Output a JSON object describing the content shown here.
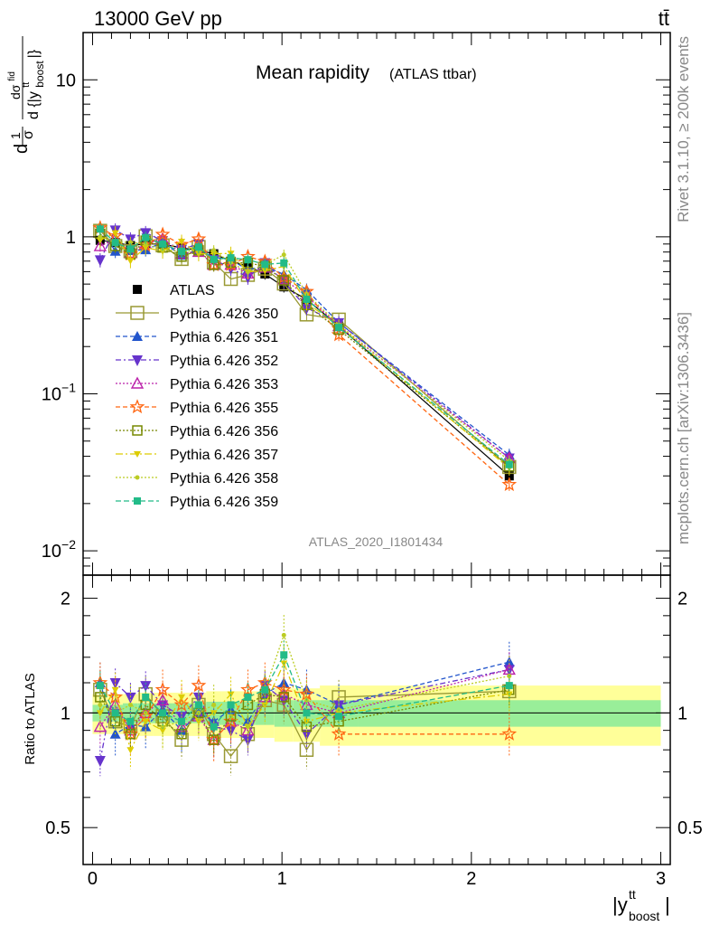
{
  "header": {
    "energy": "13000 GeV pp",
    "process": "tt̄",
    "rivet": "Rivet 3.1.10, ≥ 200k events",
    "mcplots": "mcplots.cern.ch [arXiv:1306.3436]",
    "analysis": "ATLAS_2020_I1801434"
  },
  "chart_data": {
    "type": "scatter",
    "title": "Mean rapidity",
    "subtitle": "(ATLAS ttbar)",
    "ylabel_main": "1/σ dσ^fid / d{|y_boost^tt|}",
    "ylabel_ratio": "Ratio to ATLAS",
    "xlabel": "|y_boost^tt|",
    "xlim": [
      -0.05,
      3.05
    ],
    "ylim_main": [
      0.007,
      20
    ],
    "ylim_ratio": [
      0.4,
      2.3
    ],
    "x_ticks": [
      "0",
      "1",
      "2",
      "3"
    ],
    "y_ticks_main": [
      "10",
      "1",
      "10−1",
      "10−2"
    ],
    "y_ticks_ratio": [
      "2",
      "1",
      "0.5"
    ],
    "bins": [
      [
        0.0,
        0.08
      ],
      [
        0.08,
        0.16
      ],
      [
        0.16,
        0.24
      ],
      [
        0.24,
        0.32
      ],
      [
        0.32,
        0.42
      ],
      [
        0.42,
        0.52
      ],
      [
        0.52,
        0.6
      ],
      [
        0.6,
        0.68
      ],
      [
        0.68,
        0.78
      ],
      [
        0.78,
        0.86
      ],
      [
        0.86,
        0.96
      ],
      [
        0.96,
        1.06
      ],
      [
        1.06,
        1.2
      ],
      [
        1.2,
        1.4
      ],
      [
        1.4,
        3.0
      ]
    ],
    "x": [
      0.04,
      0.12,
      0.2,
      0.28,
      0.37,
      0.47,
      0.56,
      0.64,
      0.73,
      0.82,
      0.91,
      1.01,
      1.13,
      1.3,
      2.2
    ],
    "atlas": [
      0.95,
      0.92,
      0.88,
      0.9,
      0.9,
      0.85,
      0.82,
      0.78,
      0.7,
      0.65,
      0.58,
      0.48,
      0.4,
      0.27,
      0.03
    ],
    "band_inner": [
      0.05,
      0.05,
      0.06,
      0.06,
      0.06,
      0.06,
      0.06,
      0.07,
      0.07,
      0.07,
      0.07,
      0.08,
      0.08,
      0.08,
      0.08
    ],
    "band_outer": [
      0.12,
      0.12,
      0.12,
      0.13,
      0.13,
      0.13,
      0.13,
      0.14,
      0.14,
      0.14,
      0.14,
      0.16,
      0.16,
      0.18,
      0.18
    ],
    "series": [
      {
        "name": "ATLAS",
        "color": "#000000",
        "marker": "square-filled",
        "dash": "",
        "ratio": []
      },
      {
        "name": "Pythia 6.426 350",
        "color": "#999933",
        "marker": "square-open-large",
        "dash": "",
        "ratio": [
          1.15,
          0.95,
          0.92,
          1.12,
          0.98,
          0.85,
          1.05,
          0.88,
          0.77,
          0.88,
          1.08,
          1.05,
          0.8,
          1.1,
          1.14
        ]
      },
      {
        "name": "Pythia 6.426 351",
        "color": "#2255cc",
        "marker": "triangle-up-filled",
        "dash": "5,3",
        "ratio": [
          1.2,
          0.88,
          0.93,
          0.92,
          1.02,
          0.9,
          1.0,
          0.95,
          1.02,
          0.95,
          1.12,
          1.2,
          1.15,
          1.05,
          1.36
        ]
      },
      {
        "name": "Pythia 6.426 352",
        "color": "#6633cc",
        "marker": "triangle-down-filled",
        "dash": "6,3,2,3",
        "ratio": [
          0.75,
          1.2,
          1.1,
          1.18,
          1.05,
          0.98,
          1.1,
          0.92,
          0.9,
          0.85,
          1.18,
          1.08,
          0.88,
          1.05,
          1.3
        ]
      },
      {
        "name": "Pythia 6.426 353",
        "color": "#bb22aa",
        "marker": "triangle-up-open",
        "dash": "2,2",
        "ratio": [
          0.92,
          1.05,
          0.9,
          1.0,
          1.08,
          0.92,
          0.98,
          0.85,
          0.95,
          0.9,
          1.1,
          1.12,
          1.05,
          1.0,
          1.3
        ]
      },
      {
        "name": "Pythia 6.426 355",
        "color": "#ff6611",
        "marker": "star-open",
        "dash": "5,3",
        "ratio": [
          1.2,
          1.1,
          0.88,
          0.98,
          1.15,
          1.05,
          1.18,
          0.85,
          0.95,
          1.15,
          1.2,
          1.15,
          1.12,
          0.88,
          0.88
        ]
      },
      {
        "name": "Pythia 6.426 356",
        "color": "#778800",
        "marker": "square-open",
        "dash": "2,2",
        "ratio": [
          1.1,
          0.95,
          0.88,
          1.05,
          0.95,
          0.88,
          1.0,
          0.85,
          0.98,
          1.05,
          1.12,
          1.1,
          0.92,
          0.95,
          1.15
        ]
      },
      {
        "name": "Pythia 6.426 357",
        "color": "#ddcc00",
        "marker": "triangle-down-small",
        "dash": "8,3,2,3",
        "ratio": [
          1.0,
          1.15,
          0.8,
          0.95,
          0.9,
          1.1,
          0.95,
          1.0,
          1.12,
          0.92,
          1.05,
          1.35,
          0.95,
          1.0,
          1.12
        ]
      },
      {
        "name": "Pythia 6.426 358",
        "color": "#bbcc22",
        "marker": "dot",
        "dash": "2,2",
        "ratio": [
          1.05,
          1.0,
          1.05,
          1.0,
          0.92,
          0.95,
          1.0,
          1.05,
          0.98,
          0.92,
          1.15,
          1.6,
          1.08,
          1.02,
          1.25
        ]
      },
      {
        "name": "Pythia 6.426 359",
        "color": "#22bb88",
        "marker": "square-filled-small",
        "dash": "6,3",
        "ratio": [
          1.18,
          1.0,
          0.95,
          1.1,
          1.0,
          0.95,
          1.05,
          0.92,
          1.05,
          1.1,
          1.15,
          1.42,
          1.0,
          0.98,
          1.18
        ]
      }
    ]
  }
}
